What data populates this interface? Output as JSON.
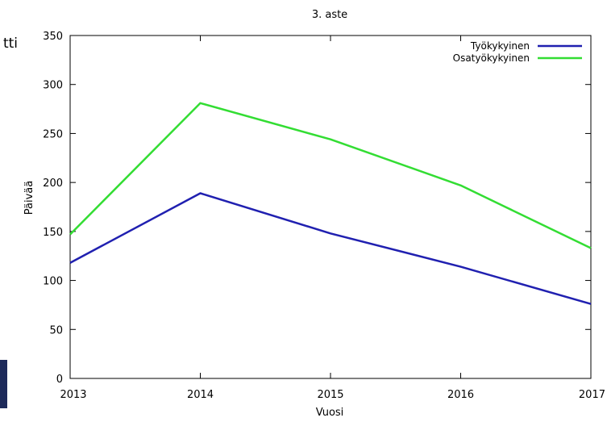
{
  "left_fragment_text": "tti",
  "colors": {
    "series_1": "#2020b0",
    "series_2": "#33dd33",
    "axis": "#000000",
    "left_bar": "#1d2a5a"
  },
  "chart_data": {
    "type": "line",
    "title": "3. aste",
    "xlabel": "Vuosi",
    "ylabel": "Päivää",
    "x": [
      2013,
      2014,
      2015,
      2016,
      2017
    ],
    "xlim": [
      2013,
      2017
    ],
    "ylim": [
      0,
      350
    ],
    "x_ticks": [
      "2013",
      "2014",
      "2015",
      "2016",
      "2017"
    ],
    "y_ticks": [
      "0",
      "50",
      "100",
      "150",
      "200",
      "250",
      "300",
      "350"
    ],
    "grid": false,
    "legend_position": "top-right",
    "series": [
      {
        "name": "Työkykyinen",
        "values": [
          118,
          189,
          148,
          114,
          76
        ]
      },
      {
        "name": "Osatyökykyinen",
        "values": [
          147,
          281,
          244,
          197,
          133
        ]
      }
    ]
  }
}
